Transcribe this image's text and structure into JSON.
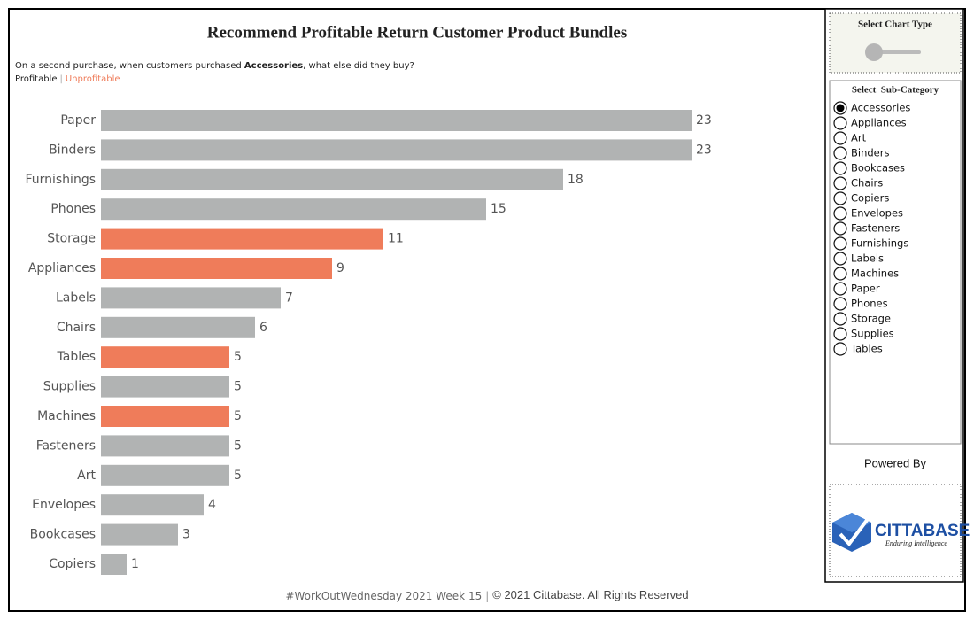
{
  "chart_data": {
    "type": "bar",
    "orientation": "horizontal",
    "title": "Recommend Profitable Return Customer Product Bundles",
    "subtitle_parts": [
      "On a second purchase, when customers purchased ",
      "Accessories",
      ", what else did they buy?"
    ],
    "groups": [
      {
        "name": "Profitable",
        "color": "#b1b3b3"
      },
      {
        "name": "Unprofitable",
        "color": "#ef7c5a"
      }
    ],
    "legend_separator": "|",
    "categories": [
      "Paper",
      "Binders",
      "Furnishings",
      "Phones",
      "Storage",
      "Appliances",
      "Labels",
      "Chairs",
      "Tables",
      "Supplies",
      "Machines",
      "Fasteners",
      "Art",
      "Envelopes",
      "Bookcases",
      "Copiers"
    ],
    "values": [
      23,
      23,
      18,
      15,
      11,
      9,
      7,
      6,
      5,
      5,
      5,
      5,
      5,
      4,
      3,
      1
    ],
    "bar_group": [
      0,
      0,
      0,
      0,
      1,
      1,
      0,
      0,
      1,
      0,
      1,
      0,
      0,
      0,
      0,
      0
    ],
    "xlim": [
      0,
      23
    ]
  },
  "footer": {
    "left": "#WorkOutWednesday 2021 Week 15",
    "separator": "|",
    "right": "© 2021 Cittabase. All Rights Reserved"
  },
  "sidebar": {
    "chart_type_control": {
      "title": "Select Chart Type"
    },
    "subcategory_filter": {
      "title": "Select  Sub-Category",
      "selected": 0,
      "options": [
        "Accessories",
        "Appliances",
        "Art",
        "Binders",
        "Bookcases",
        "Chairs",
        "Copiers",
        "Envelopes",
        "Fasteners",
        "Furnishings",
        "Labels",
        "Machines",
        "Paper",
        "Phones",
        "Storage",
        "Supplies",
        "Tables"
      ]
    },
    "powered_by": "Powered By",
    "logo": {
      "name": "CITTABASE",
      "tagline": "Enduring Intelligence"
    }
  }
}
